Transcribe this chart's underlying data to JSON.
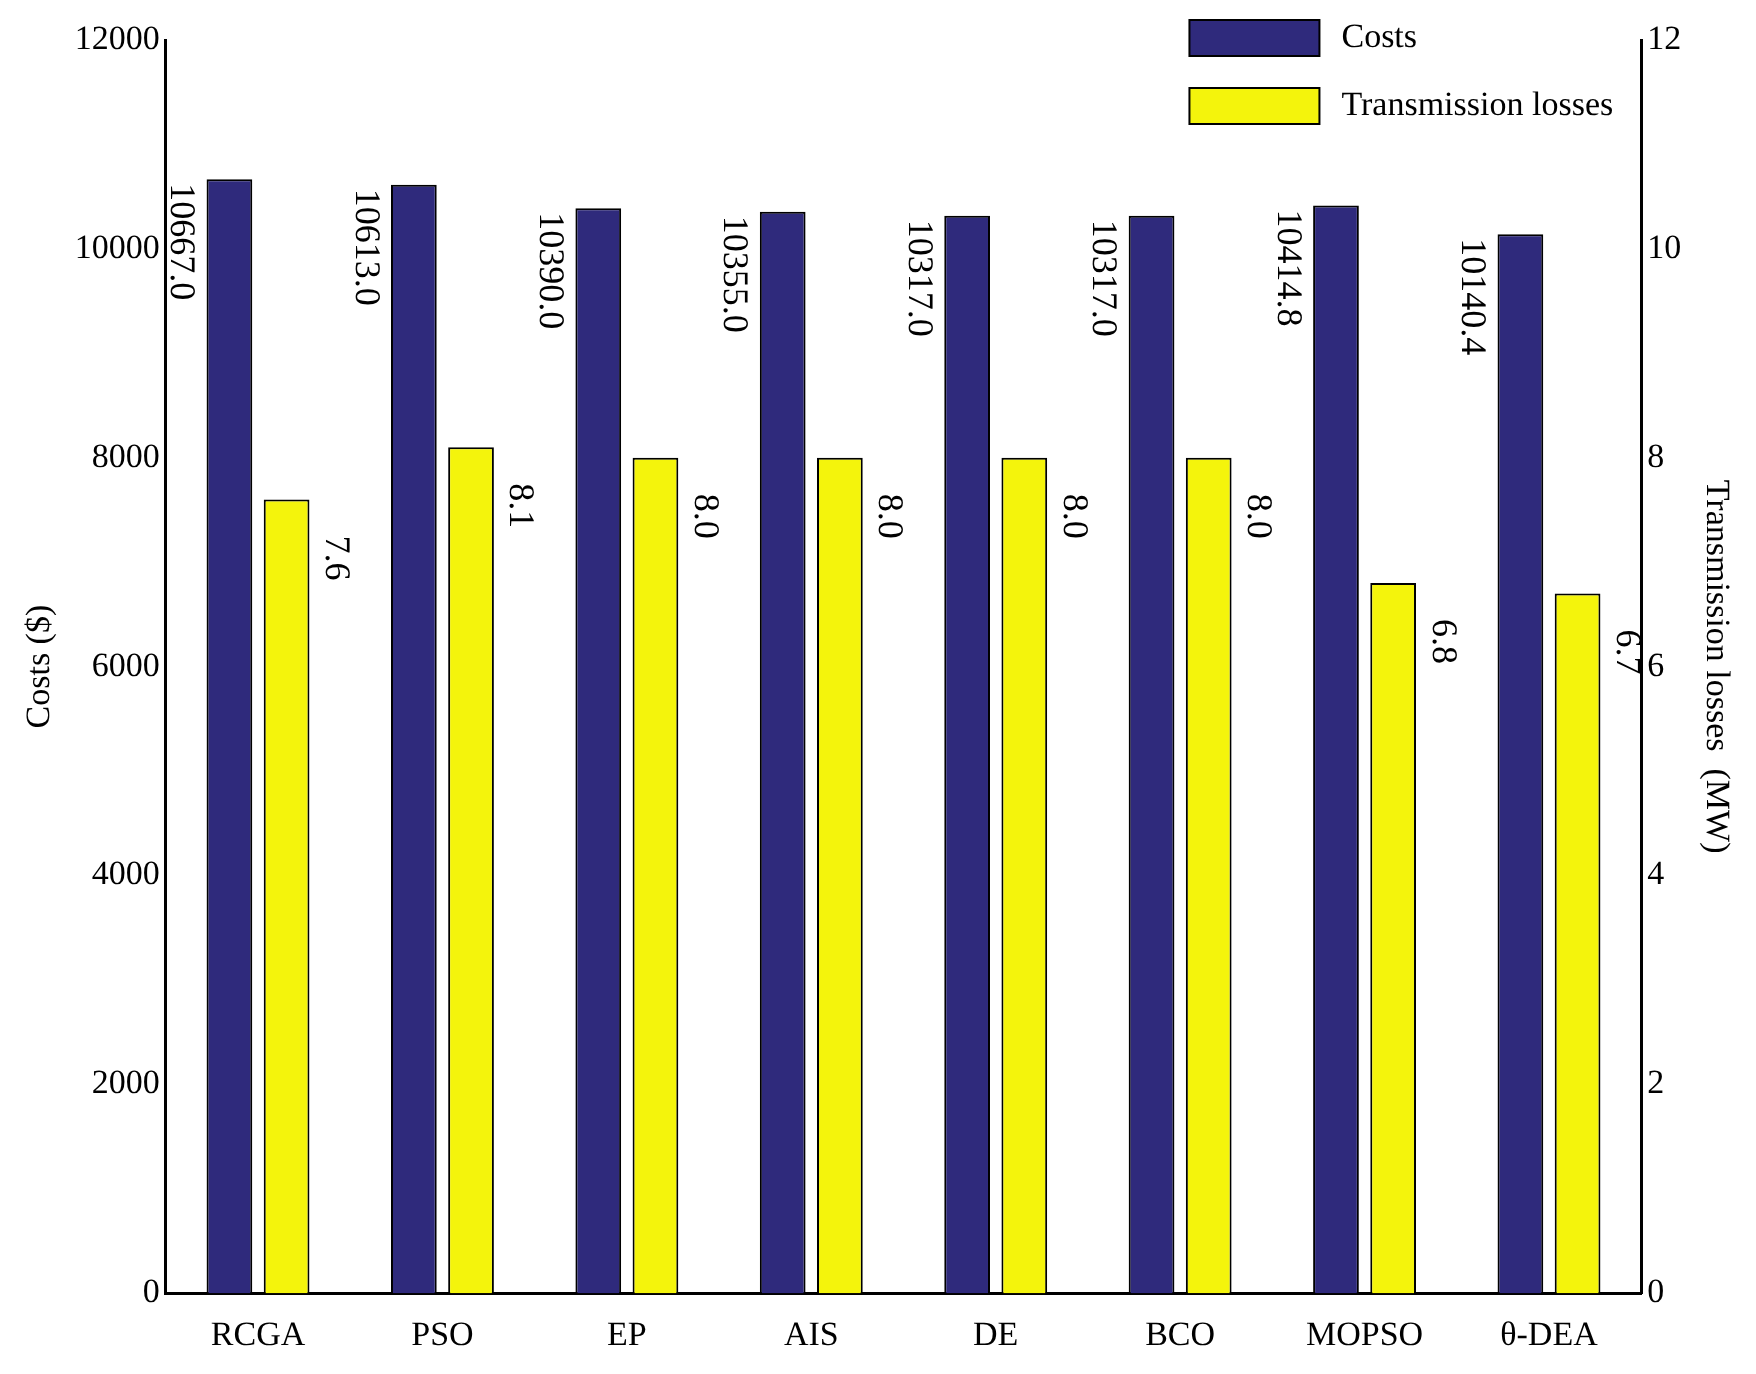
{
  "chart_data": {
    "type": "bar",
    "ylabel": "Costs ($)",
    "y2label": "Transmission losses  (MW)",
    "categories": [
      "RCGA",
      "PSO",
      "EP",
      "AIS",
      "DE",
      "BCO",
      "MOPSO",
      "θ-DEA"
    ],
    "series": [
      {
        "name": "Costs",
        "color": "#2f2a7c",
        "values": [
          10667.0,
          10613.0,
          10390.0,
          10355.0,
          10317.0,
          10317.0,
          10414.8,
          10140.4
        ],
        "value_labels": [
          "10667.0",
          "10613.0",
          "10390.0",
          "10355.0",
          "10317.0",
          "10317.0",
          "10414.8",
          "10140.4"
        ]
      },
      {
        "name": "Transmission losses",
        "color": "#f4f40c",
        "axis": "y2",
        "values": [
          7.6,
          8.1,
          8.0,
          8.0,
          8.0,
          8.0,
          6.8,
          6.7
        ],
        "value_labels": [
          "7.6",
          "8.1",
          "8.0",
          "8.0",
          "8.0",
          "8.0",
          "6.8",
          "6.7"
        ]
      }
    ],
    "ylim": [
      0,
      12000
    ],
    "yticks": [
      0,
      2000,
      4000,
      6000,
      8000,
      10000,
      12000
    ],
    "y2lim": [
      0,
      12
    ],
    "y2ticks": [
      0,
      2,
      4,
      6,
      8,
      10,
      12
    ],
    "legend": "top right",
    "grid": false
  }
}
